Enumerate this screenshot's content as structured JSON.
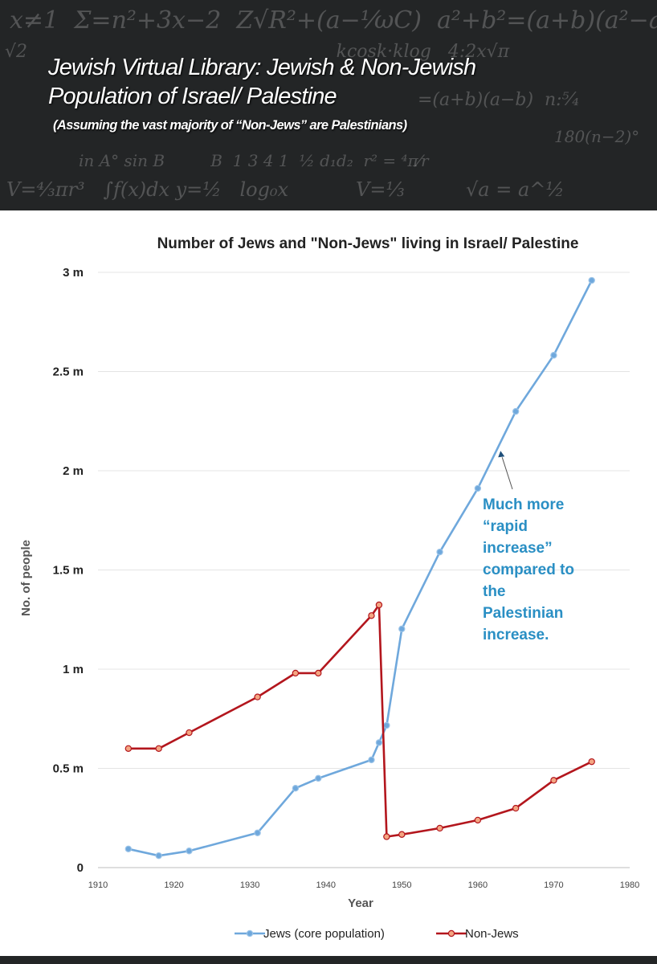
{
  "banner": {
    "title_line1": "Jewish Virtual Library: Jewish & Non-Jewish",
    "title_line2": "Population of Israel/ Palestine",
    "subtitle": "(Assuming the vast majority of “Non-Jews” are Palestinians)"
  },
  "colors": {
    "banner_bg": "#232526",
    "jews_line": "#6fa8dc",
    "nonjews_line": "#b3161d",
    "marker_fill": "#f4a582",
    "annotation": "#2a8fc4"
  },
  "chart_data": {
    "type": "line",
    "title": "Number of Jews and \"Non-Jews\" living in Israel/ Palestine",
    "xlabel": "Year",
    "ylabel": "No. of people",
    "xlim": [
      1910,
      1980
    ],
    "ylim": [
      0,
      3000000
    ],
    "x_ticks": [
      1910,
      1920,
      1930,
      1940,
      1950,
      1960,
      1970,
      1980
    ],
    "y_ticks": [
      {
        "value": 0,
        "label": "0"
      },
      {
        "value": 500000,
        "label": "0.5 m"
      },
      {
        "value": 1000000,
        "label": "1 m"
      },
      {
        "value": 1500000,
        "label": "1.5 m"
      },
      {
        "value": 2000000,
        "label": "2 m"
      },
      {
        "value": 2500000,
        "label": "2.5 m"
      },
      {
        "value": 3000000,
        "label": "3 m"
      }
    ],
    "grid": "horizontal",
    "legend_position": "bottom",
    "series": [
      {
        "name": "Jews (core population)",
        "color": "#6fa8dc",
        "points": [
          [
            1914,
            94000
          ],
          [
            1918,
            60000
          ],
          [
            1922,
            84000
          ],
          [
            1931,
            175000
          ],
          [
            1936,
            400000
          ],
          [
            1939,
            450000
          ],
          [
            1946,
            543000
          ],
          [
            1947,
            630000
          ],
          [
            1948,
            716700
          ],
          [
            1950,
            1203000
          ],
          [
            1955,
            1590500
          ],
          [
            1960,
            1911300
          ],
          [
            1965,
            2299100
          ],
          [
            1970,
            2582000
          ],
          [
            1975,
            2959400
          ]
        ]
      },
      {
        "name": "Non-Jews",
        "color": "#b3161d",
        "points": [
          [
            1914,
            600000
          ],
          [
            1918,
            600000
          ],
          [
            1922,
            680000
          ],
          [
            1931,
            860000
          ],
          [
            1936,
            980000
          ],
          [
            1939,
            980000
          ],
          [
            1946,
            1270000
          ],
          [
            1947,
            1324000
          ],
          [
            1948,
            156000
          ],
          [
            1950,
            167000
          ],
          [
            1955,
            198600
          ],
          [
            1960,
            239200
          ],
          [
            1965,
            299300
          ],
          [
            1970,
            440000
          ],
          [
            1975,
            533800
          ]
        ]
      }
    ],
    "annotation": {
      "lines": [
        "Much more",
        "“rapid",
        "increase”",
        "compared to",
        "the",
        "Palestinian",
        "increase."
      ],
      "arrow_target": [
        1963,
        2100000
      ]
    }
  }
}
